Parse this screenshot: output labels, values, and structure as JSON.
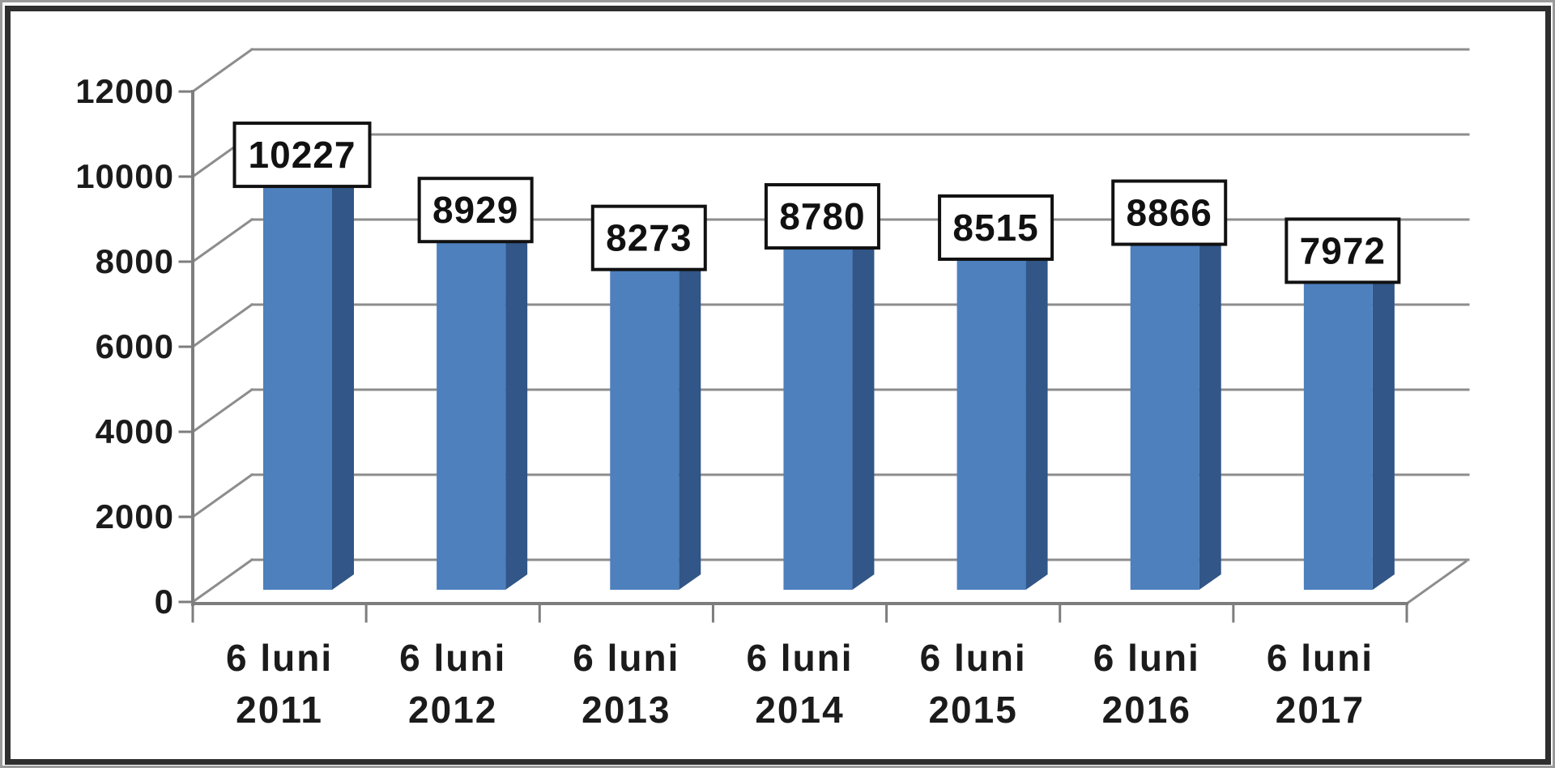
{
  "chart_data": {
    "type": "bar",
    "style": "3d-column",
    "title": "",
    "xlabel": "",
    "ylabel": "",
    "categories": [
      "6 luni 2011",
      "6 luni 2012",
      "6 luni 2013",
      "6 luni 2014",
      "6 luni 2015",
      "6 luni 2016",
      "6 luni 2017"
    ],
    "category_label_lines": [
      [
        "6 luni",
        "2011"
      ],
      [
        "6 luni",
        "2012"
      ],
      [
        "6 luni",
        "2013"
      ],
      [
        "6 luni",
        "2014"
      ],
      [
        "6 luni",
        "2015"
      ],
      [
        "6 luni",
        "2016"
      ],
      [
        "6 luni",
        "2017"
      ]
    ],
    "values": [
      10227,
      8929,
      8273,
      8780,
      8515,
      8866,
      7972
    ],
    "data_labels": [
      "10227",
      "8929",
      "8273",
      "8780",
      "8515",
      "8866",
      "7972"
    ],
    "ylim": [
      0,
      12000
    ],
    "y_tick_step": 2000,
    "y_tick_labels": [
      "0",
      "2000",
      "4000",
      "6000",
      "8000",
      "10000",
      "12000"
    ],
    "grid": true,
    "legend": "none",
    "colors": {
      "bar_front": "#4d80bd",
      "bar_side": "#315687",
      "bar_top": "#3e69a5",
      "gridline": "#8d8d8d",
      "axis": "#7d7d7d",
      "text": "#1b1b1b",
      "data_label_text": "#111111",
      "data_label_box_bg": "#ffffff",
      "data_label_box_border": "#111111",
      "frame_border": "#2e2e2e",
      "frame_outer_edge": "#9a9a9a",
      "plot_background": "#ffffff"
    }
  }
}
